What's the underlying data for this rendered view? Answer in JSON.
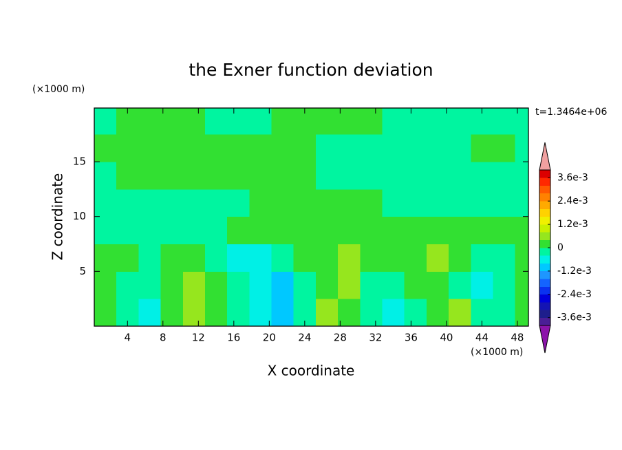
{
  "chart_data": {
    "type": "contour",
    "title": "the Exner function deviation",
    "xlabel": "X coordinate",
    "ylabel": "Z coordinate",
    "xunit": "(×1000 m)",
    "yunit": "(×1000 m)",
    "annotation": "t=1.3464e+06",
    "xlim": [
      0.25,
      49.25
    ],
    "ylim": [
      0,
      19.9
    ],
    "xticks": [
      4,
      8,
      12,
      16,
      20,
      24,
      28,
      32,
      36,
      40,
      44,
      48
    ],
    "yticks": [
      5,
      10,
      15
    ],
    "x": [
      1.5,
      4,
      6.5,
      9,
      11.5,
      14,
      16.5,
      19,
      21.5,
      24,
      26.5,
      29,
      31.5,
      34,
      36.5,
      39,
      41.5,
      44,
      46.5,
      49
    ],
    "y": [
      1.25,
      3.75,
      6.25,
      8.75,
      11.25,
      13.75,
      16.25,
      18.75
    ],
    "z": [
      [
        0.0002,
        -0.0002,
        -0.0006,
        0.0002,
        0.0006,
        0.0002,
        -0.0002,
        -0.0006,
        -0.001,
        -0.0002,
        0.0006,
        0.0002,
        -0.0002,
        -0.0006,
        -0.0002,
        0.0002,
        0.0006,
        -0.0002,
        -0.0002,
        0.0002
      ],
      [
        0.0002,
        -0.0002,
        -0.0002,
        0.0002,
        0.0006,
        0.0002,
        -0.0002,
        -0.0006,
        -0.001,
        -0.0002,
        0.0002,
        0.0006,
        -0.0002,
        -0.0002,
        0.0002,
        0.0002,
        -0.0002,
        -0.0006,
        -0.0002,
        0.0002
      ],
      [
        0.0002,
        0.0002,
        -0.0002,
        0.0002,
        0.0002,
        -0.0002,
        -0.0006,
        -0.0006,
        -0.0002,
        0.0002,
        0.0002,
        0.0006,
        0.0002,
        0.0002,
        0.0002,
        0.0006,
        0.0002,
        -0.0002,
        -0.0002,
        0.0002
      ],
      [
        -0.0002,
        -0.0002,
        -0.0002,
        -0.0002,
        -0.0002,
        -0.0002,
        0.0002,
        0.0002,
        0.0002,
        0.0002,
        0.0002,
        0.0002,
        0.0002,
        0.0002,
        0.0002,
        0.0002,
        0.0002,
        0.0002,
        0.0002,
        0.0002
      ],
      [
        -0.0002,
        -0.0002,
        -0.0002,
        -0.0002,
        -0.0002,
        -0.0002,
        -0.0002,
        0.0002,
        0.0002,
        0.0002,
        0.0002,
        0.0002,
        0.0002,
        -0.0002,
        -0.0002,
        -0.0002,
        -0.0002,
        -0.0002,
        -0.0002,
        -0.0002
      ],
      [
        -0.0002,
        0.0002,
        0.0002,
        0.0002,
        0.0002,
        0.0002,
        0.0002,
        0.0002,
        0.0002,
        0.0002,
        -0.0002,
        -0.0002,
        -0.0002,
        -0.0002,
        -0.0002,
        -0.0002,
        -0.0002,
        -0.0002,
        -0.0002,
        -0.0002
      ],
      [
        0.0002,
        0.0002,
        0.0002,
        0.0002,
        0.0002,
        0.0002,
        0.0002,
        0.0002,
        0.0002,
        0.0002,
        -0.0002,
        -0.0002,
        -0.0002,
        -0.0002,
        -0.0002,
        -0.0002,
        -0.0002,
        0.0002,
        0.0002,
        -0.0002
      ],
      [
        -0.0002,
        0.0002,
        0.0002,
        0.0002,
        0.0002,
        -0.0002,
        -0.0002,
        -0.0002,
        0.0002,
        0.0002,
        0.0002,
        0.0002,
        0.0002,
        -0.0002,
        -0.0002,
        -0.0002,
        -0.0002,
        -0.0002,
        -0.0002,
        -0.0002
      ]
    ],
    "colorbar": {
      "lim": [
        -0.004,
        0.004
      ],
      "ticks": [
        {
          "value": -0.0036,
          "label": "-3.6e-3"
        },
        {
          "value": -0.0024,
          "label": "-2.4e-3"
        },
        {
          "value": -0.0012,
          "label": "-1.2e-3"
        },
        0,
        {
          "value": 0.0012,
          "label": "1.2e-3"
        },
        {
          "value": 0.0024,
          "label": "2.4e-3"
        },
        {
          "value": 0.0036,
          "label": "3.6e-3"
        }
      ],
      "colors": [
        "#4b1e96",
        "#1e1e8c",
        "#1414b4",
        "#0000dc",
        "#0a32f0",
        "#1464ff",
        "#1e96ff",
        "#00c8ff",
        "#00f0e6",
        "#00f5a0",
        "#32e032",
        "#96e61e",
        "#c8f000",
        "#f0f000",
        "#ffd200",
        "#ffaa00",
        "#ff8200",
        "#ff5a00",
        "#ff2800",
        "#dc0000"
      ],
      "under_color": "#8c14aa",
      "over_color": "#f0a0a0"
    }
  }
}
